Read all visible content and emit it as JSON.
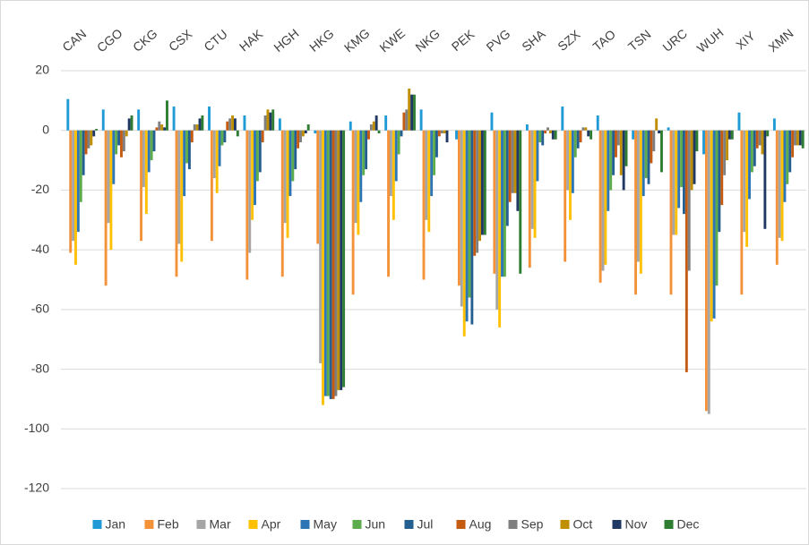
{
  "chart_data": {
    "type": "bar",
    "categories": [
      "CAN",
      "CGO",
      "CKG",
      "CSX",
      "CTU",
      "HAK",
      "HGH",
      "HKG",
      "KMG",
      "KWE",
      "NKG",
      "PEK",
      "PVG",
      "SHA",
      "SZX",
      "TAO",
      "TSN",
      "URC",
      "WUH",
      "XIY",
      "XMN"
    ],
    "ylim": [
      -120,
      20
    ],
    "yticks": [
      -120,
      -100,
      -80,
      -60,
      -40,
      -20,
      0,
      20
    ],
    "grid": true,
    "legend": "bottom",
    "series": [
      {
        "name": "Jan",
        "color": "#1f9ad6",
        "values": [
          10.5,
          7,
          7,
          8,
          8,
          5,
          4,
          -1,
          3,
          5,
          7,
          -3,
          6,
          2,
          8,
          5,
          -3,
          1,
          -8,
          6,
          4
        ]
      },
      {
        "name": "Feb",
        "color": "#f4923a",
        "values": [
          -41,
          -52,
          -37,
          -49,
          -37,
          -50,
          -49,
          -38,
          -55,
          -49,
          -50,
          -52,
          -48,
          -46,
          -44,
          -51,
          -55,
          -55,
          -94,
          -55,
          -45
        ]
      },
      {
        "name": "Mar",
        "color": "#a5a5a5",
        "values": [
          -37,
          -31,
          -19,
          -38,
          -16,
          -41,
          -31,
          -78,
          -31,
          -22,
          -30,
          -59,
          -60,
          -33,
          -20,
          -47,
          -44,
          -35,
          -95,
          -34,
          -36
        ]
      },
      {
        "name": "Apr",
        "color": "#ffc000",
        "values": [
          -45,
          -40,
          -28,
          -44,
          -21,
          -30,
          -36,
          -92,
          -35,
          -30,
          -34,
          -69,
          -66,
          -36,
          -30,
          -45,
          -48,
          -35,
          -64,
          -39,
          -37
        ]
      },
      {
        "name": "May",
        "color": "#2e75b6",
        "values": [
          -34,
          -18,
          -14,
          -22,
          -12,
          -25,
          -22,
          -89,
          -24,
          -17,
          -22,
          -64,
          -49,
          -17,
          -21,
          -27,
          -22,
          -26,
          -63,
          -23,
          -24
        ]
      },
      {
        "name": "Jun",
        "color": "#5cab4c",
        "values": [
          -24,
          -8,
          -10,
          -11,
          -5,
          -17,
          -17,
          -89,
          -15,
          -8,
          -15,
          -56,
          -49,
          -4,
          -9,
          -20,
          -16,
          -19,
          -52,
          -14,
          -18
        ]
      },
      {
        "name": "Jul",
        "color": "#245f92",
        "values": [
          -15,
          -5,
          -7,
          -13,
          -4,
          -14,
          -13,
          -90,
          -13,
          -2,
          -9,
          -65,
          -32,
          -5,
          -6,
          -15,
          -18,
          -28,
          -34,
          -12,
          -14
        ]
      },
      {
        "name": "Aug",
        "color": "#c55a11",
        "values": [
          -8,
          -9,
          1,
          -4,
          3,
          -4,
          -6,
          -90,
          -3,
          6,
          -2,
          -42,
          -24,
          -1,
          -4,
          -9,
          -11,
          -81,
          -25,
          -6,
          -9
        ]
      },
      {
        "name": "Sep",
        "color": "#7f7f7f",
        "values": [
          -6,
          -7,
          3,
          2,
          4,
          5,
          -4,
          -89,
          2,
          7,
          -1,
          -41,
          -21,
          1,
          1,
          -5,
          -7,
          -47,
          -15,
          -5,
          -5
        ]
      },
      {
        "name": "Oct",
        "color": "#bf8f00",
        "values": [
          -5,
          -2,
          2,
          2,
          5,
          7,
          -2,
          -87,
          3,
          14,
          -1,
          -37,
          -21,
          -1,
          1,
          -15,
          4,
          -20,
          -10,
          -8,
          -5
        ]
      },
      {
        "name": "Nov",
        "color": "#1f3864",
        "values": [
          -2,
          4,
          1,
          4,
          4,
          6,
          -1,
          -87,
          5,
          12,
          -4,
          -35,
          -27,
          -3,
          -2,
          -20,
          -1,
          -18,
          -3,
          -33,
          -5
        ]
      },
      {
        "name": "Dec",
        "color": "#2e7d32",
        "values": [
          0.5,
          5,
          10,
          5,
          -2,
          7,
          2,
          -86,
          -1,
          12,
          0,
          -35,
          -48,
          -3,
          -3,
          -12,
          -14,
          -7,
          -3,
          -2,
          -6
        ]
      }
    ]
  }
}
